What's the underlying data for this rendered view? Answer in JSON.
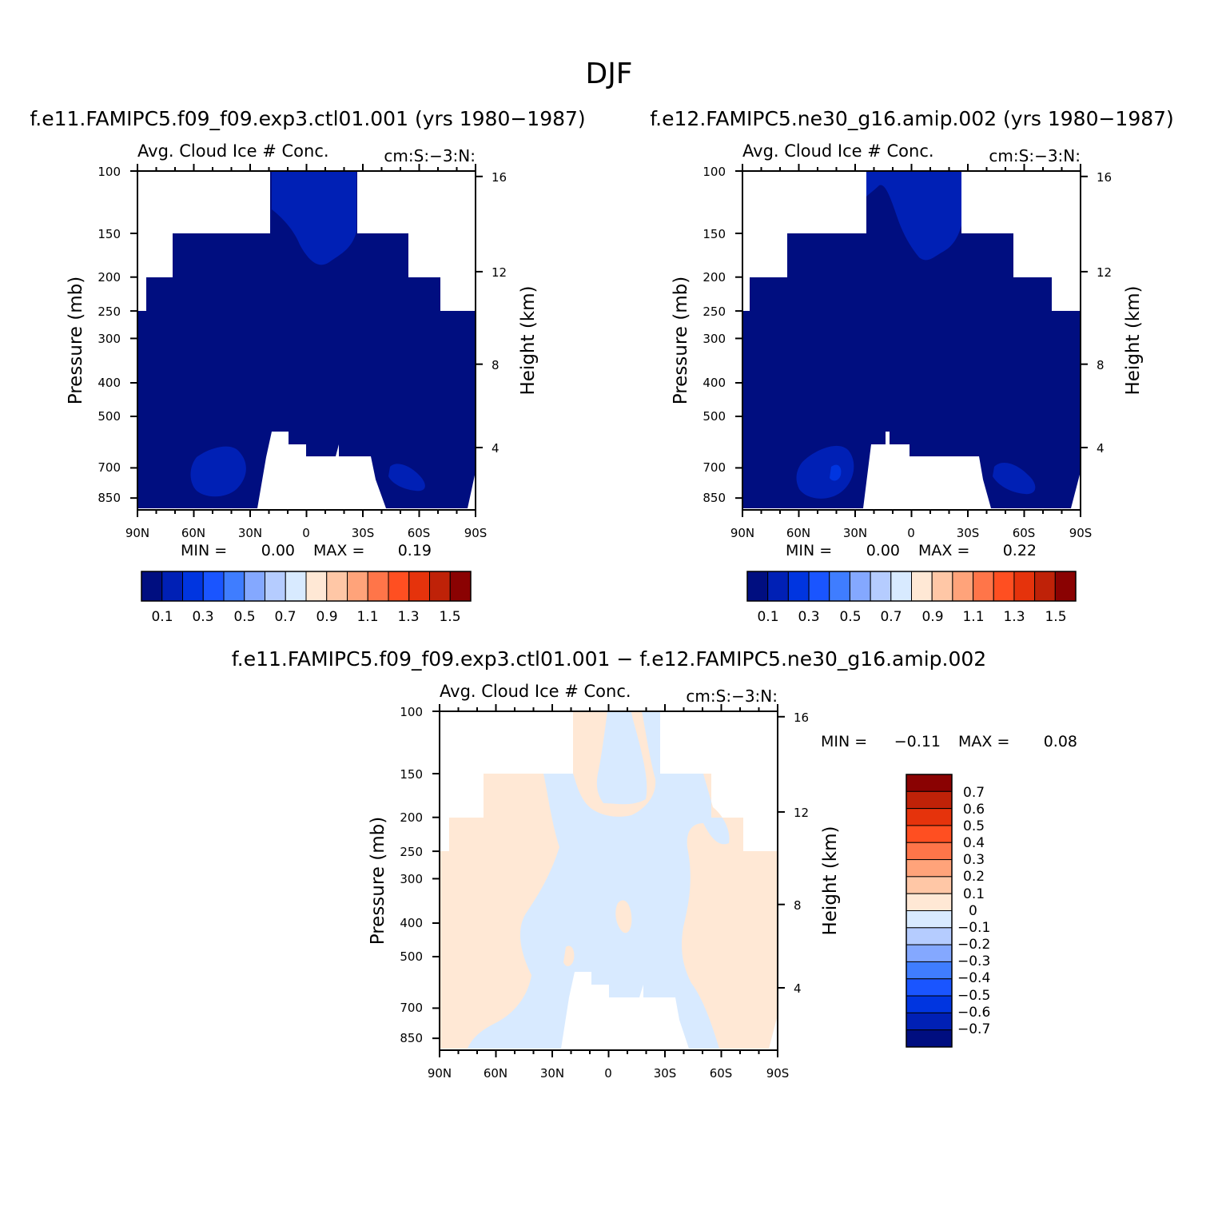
{
  "figure": {
    "title": "DJF"
  },
  "colors": {
    "bg": "#ffffff",
    "scale": [
      "#000E80",
      "#0020B5",
      "#0035E0",
      "#1A55FF",
      "#3F7DFF",
      "#84A8FF",
      "#B5CCFF",
      "#D8EAFF",
      "#FFE8D5",
      "#FFC7A6",
      "#FFA37A",
      "#FF7549",
      "#FF4F21",
      "#E5330C",
      "#BF2208",
      "#8A0202"
    ],
    "cloud_panel": {
      "deep": "#000E80",
      "mid": "#0020B5",
      "light": "#0035E0"
    },
    "diff_panel": {
      "neg": "#D8EAFF",
      "pos": "#FFE8D5"
    }
  },
  "chart_data": [
    {
      "type": "heatmap",
      "title": "f.e11.FAMIPC5.f09_f09.exp3.ctl01.001 (yrs 1980−1987)",
      "variable": "Avg. Cloud Ice # Conc.",
      "units": "cm:S:−3:N:",
      "ylabel": "Pressure (mb)",
      "y2label": "Height (km)",
      "x_ticks": [
        "90N",
        "60N",
        "30N",
        "0",
        "30S",
        "60S",
        "90S"
      ],
      "y_ticks": [
        "100",
        "150",
        "200",
        "250",
        "300",
        "400",
        "500",
        "700",
        "850"
      ],
      "y2_ticks": [
        "16",
        "12",
        "8",
        "4"
      ],
      "min_label": "MIN =",
      "min_value": "0.00",
      "max_label": "MAX =",
      "max_value": "0.19",
      "colorbar_labels": [
        "0.1",
        "0.3",
        "0.5",
        "0.7",
        "0.9",
        "1.1",
        "1.3",
        "1.5"
      ]
    },
    {
      "type": "heatmap",
      "title": "f.e12.FAMIPC5.ne30_g16.amip.002 (yrs 1980−1987)",
      "variable": "Avg. Cloud Ice # Conc.",
      "units": "cm:S:−3:N:",
      "ylabel": "Pressure (mb)",
      "y2label": "Height (km)",
      "x_ticks": [
        "90N",
        "60N",
        "30N",
        "0",
        "30S",
        "60S",
        "90S"
      ],
      "y_ticks": [
        "100",
        "150",
        "200",
        "250",
        "300",
        "400",
        "500",
        "700",
        "850"
      ],
      "y2_ticks": [
        "16",
        "12",
        "8",
        "4"
      ],
      "min_label": "MIN =",
      "min_value": "0.00",
      "max_label": "MAX =",
      "max_value": "0.22",
      "colorbar_labels": [
        "0.1",
        "0.3",
        "0.5",
        "0.7",
        "0.9",
        "1.1",
        "1.3",
        "1.5"
      ]
    },
    {
      "type": "heatmap",
      "title": "f.e11.FAMIPC5.f09_f09.exp3.ctl01.001 − f.e12.FAMIPC5.ne30_g16.amip.002",
      "variable": "Avg. Cloud Ice # Conc.",
      "units": "cm:S:−3:N:",
      "ylabel": "Pressure (mb)",
      "y2label": "Height (km)",
      "x_ticks": [
        "90N",
        "60N",
        "30N",
        "0",
        "30S",
        "60S",
        "90S"
      ],
      "y_ticks": [
        "100",
        "150",
        "200",
        "250",
        "300",
        "400",
        "500",
        "700",
        "850"
      ],
      "y2_ticks": [
        "16",
        "12",
        "8",
        "4"
      ],
      "min_label": "MIN =",
      "min_value": "−0.11",
      "max_label": "MAX =",
      "max_value": "0.08",
      "colorbar_labels": [
        "0.7",
        "0.6",
        "0.5",
        "0.4",
        "0.3",
        "0.2",
        "0.1",
        "0",
        "−0.1",
        "−0.2",
        "−0.3",
        "−0.4",
        "−0.5",
        "−0.6",
        "−0.7"
      ]
    }
  ]
}
